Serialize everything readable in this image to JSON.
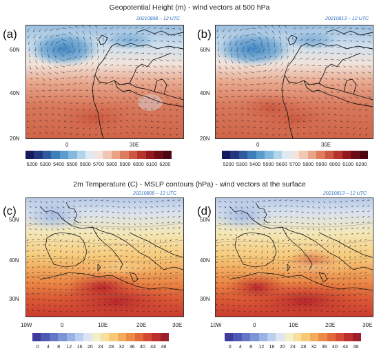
{
  "top_title": "Geopotential Height (m) - wind vectors at 500 hPa",
  "bottom_title": "2m Temperature (C) - MSLP contours (hPa) - wind vectors at the surface",
  "panels": [
    {
      "label": "(a)",
      "date": "20210808 – 12 UTC"
    },
    {
      "label": "(b)",
      "date": "20210813 – 12 UTC"
    },
    {
      "label": "(c)",
      "date": "20210808 – 12 UTC"
    },
    {
      "label": "(d)",
      "date": "20210813 – 12 UTC"
    }
  ],
  "top_map": {
    "lat_ticks": [
      "60N",
      "40N",
      "20N"
    ],
    "lon_ticks": [
      "0",
      "30E"
    ],
    "colorbar_ticks": [
      "5200",
      "5300",
      "5400",
      "5500",
      "5600",
      "5700",
      "5800",
      "5900",
      "6000",
      "6100",
      "6200"
    ]
  },
  "bottom_map": {
    "lat_ticks": [
      "50N",
      "40N",
      "30N"
    ],
    "lon_ticks": [
      "10W",
      "0",
      "10E",
      "20E",
      "30E"
    ],
    "colorbar_ticks": [
      "0",
      "4",
      "8",
      "12",
      "16",
      "20",
      "24",
      "28",
      "32",
      "36",
      "40",
      "44",
      "48"
    ]
  },
  "colors": {
    "gph_scale": [
      "#141a5c",
      "#22377f",
      "#2f5aa0",
      "#3d7fba",
      "#5a9ccd",
      "#83b9dd",
      "#b3d4ea",
      "#dfe9f1",
      "#f2e4dc",
      "#f0c7b3",
      "#e9a386",
      "#dd7d5e",
      "#cd5840",
      "#b6352b",
      "#93191f",
      "#6d0c16",
      "#4d0511"
    ],
    "temp_scale": [
      "#3d3c9c",
      "#4f58b3",
      "#6476c6",
      "#7c95d6",
      "#9bb3e2",
      "#bccfec",
      "#dbe6f2",
      "#f4efc9",
      "#f8df9e",
      "#f6c878",
      "#f2ac5c",
      "#ec8b47",
      "#e2693a",
      "#d24a32",
      "#bd2f2e",
      "#9e1d2a"
    ]
  }
}
